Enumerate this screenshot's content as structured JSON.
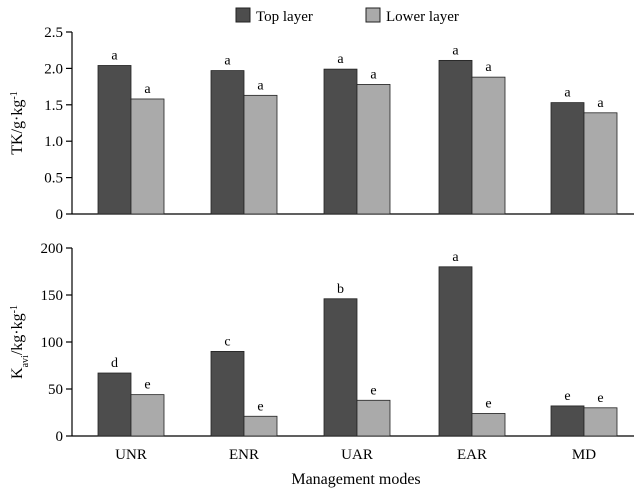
{
  "colors": {
    "top_layer": "#4d4d4d",
    "lower_layer": "#aaaaaa",
    "bar_outline": "#222222"
  },
  "legend": {
    "position": "top-center",
    "entries": [
      "Top layer",
      "Lower layer"
    ]
  },
  "chart_data": [
    {
      "type": "bar",
      "categories": [
        "UNR",
        "ENR",
        "UAR",
        "EAR",
        "MD"
      ],
      "series": [
        {
          "name": "Top layer",
          "values": [
            2.04,
            1.97,
            1.99,
            2.11,
            1.53
          ],
          "labels": [
            "a",
            "a",
            "a",
            "a",
            "a"
          ]
        },
        {
          "name": "Lower layer",
          "values": [
            1.58,
            1.63,
            1.78,
            1.88,
            1.39
          ],
          "labels": [
            "a",
            "a",
            "a",
            "a",
            "a"
          ]
        }
      ],
      "ylabel": "TK/g·kg",
      "ylabel_sup": "-1",
      "ylim": [
        0,
        2.5
      ],
      "yticks": [
        "0",
        "0.5",
        "1.0",
        "1.5",
        "2.0",
        "2.5"
      ],
      "grid": false
    },
    {
      "type": "bar",
      "categories": [
        "UNR",
        "ENR",
        "UAR",
        "EAR",
        "MD"
      ],
      "series": [
        {
          "name": "Top layer",
          "values": [
            67,
            90,
            146,
            180,
            32
          ],
          "labels": [
            "d",
            "c",
            "b",
            "a",
            "e"
          ]
        },
        {
          "name": "Lower layer",
          "values": [
            44,
            21,
            38,
            24,
            30
          ],
          "labels": [
            "e",
            "e",
            "e",
            "e",
            "e"
          ]
        }
      ],
      "ylabel_main": "K",
      "ylabel_sub": "avi",
      "ylabel_rest": "/kg·kg",
      "ylabel_sup": "-1",
      "ylim": [
        0,
        200
      ],
      "yticks": [
        "0",
        "50",
        "100",
        "150",
        "200"
      ],
      "xlabel": "Management modes",
      "xticks": [
        "UNR",
        "ENR",
        "UAR",
        "EAR",
        "MD"
      ],
      "grid": false
    }
  ]
}
